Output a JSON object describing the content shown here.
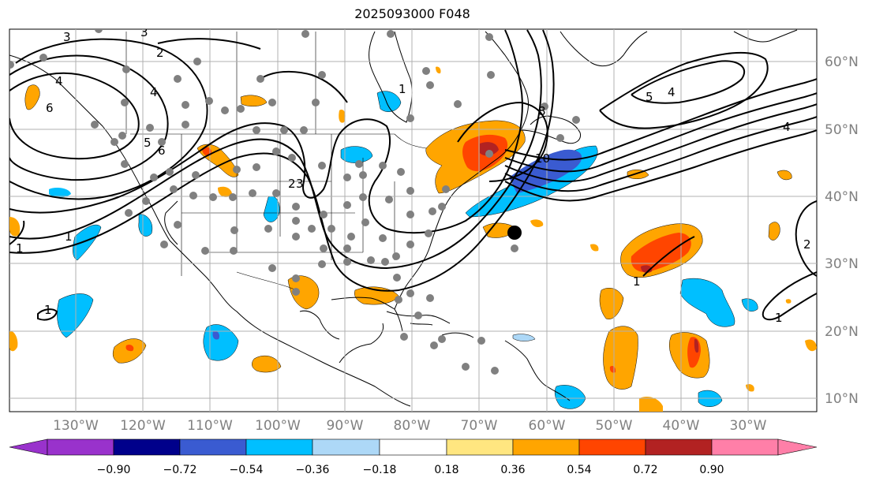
{
  "title": "2025093000 F048",
  "map": {
    "projection": "plate-carree",
    "lon_range": [
      -138,
      -17
    ],
    "lat_range": [
      8,
      65
    ],
    "lon_labels": [
      "130°W",
      "120°W",
      "110°W",
      "100°W",
      "90°W",
      "80°W",
      "70°W",
      "60°W",
      "50°W",
      "40°W",
      "30°W"
    ],
    "lat_labels": [
      "60°N",
      "50°N",
      "40°N",
      "30°N",
      "20°N",
      "10°N"
    ],
    "gridlines": true,
    "contour_labels": [
      "3",
      "3",
      "2",
      "4",
      "6",
      "4",
      "5",
      "6",
      "2",
      "3",
      "1",
      "1",
      "1",
      "8",
      "10",
      "5",
      "4",
      "4",
      "1",
      "2",
      "1",
      "1"
    ],
    "station_marker": "large black dot near 65°W 35°N",
    "observation_points": "gray dots"
  },
  "colorbar": {
    "tick_labels": [
      "−0.90",
      "−0.72",
      "−0.54",
      "−0.36",
      "−0.18",
      "0.18",
      "0.36",
      "0.54",
      "0.72",
      "0.90"
    ],
    "colors": [
      "#9932cc",
      "#00008b",
      "#3a5bd1",
      "#00bfff",
      "#add8f7",
      "#ffffff",
      "#ffe680",
      "#ffa500",
      "#ff4500",
      "#b22222",
      "#ff7fa8"
    ],
    "extend": "both"
  }
}
